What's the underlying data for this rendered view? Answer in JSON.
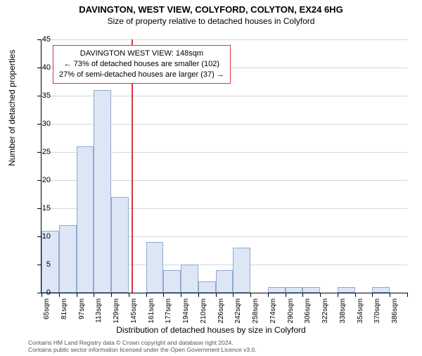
{
  "title": "DAVINGTON, WEST VIEW, COLYFORD, COLYTON, EX24 6HG",
  "subtitle": "Size of property relative to detached houses in Colyford",
  "y_axis_title": "Number of detached properties",
  "x_axis_title": "Distribution of detached houses by size in Colyford",
  "histogram": {
    "type": "histogram",
    "bin_width_sqm": 16,
    "bins": [
      {
        "label": "65sqm",
        "value": 11
      },
      {
        "label": "81sqm",
        "value": 12
      },
      {
        "label": "97sqm",
        "value": 26
      },
      {
        "label": "113sqm",
        "value": 36
      },
      {
        "label": "129sqm",
        "value": 17
      },
      {
        "label": "145sqm",
        "value": 0
      },
      {
        "label": "161sqm",
        "value": 9
      },
      {
        "label": "177sqm",
        "value": 4
      },
      {
        "label": "194sqm",
        "value": 5
      },
      {
        "label": "210sqm",
        "value": 2
      },
      {
        "label": "226sqm",
        "value": 4
      },
      {
        "label": "242sqm",
        "value": 8
      },
      {
        "label": "258sqm",
        "value": 0
      },
      {
        "label": "274sqm",
        "value": 1
      },
      {
        "label": "290sqm",
        "value": 1
      },
      {
        "label": "306sqm",
        "value": 1
      },
      {
        "label": "322sqm",
        "value": 0
      },
      {
        "label": "338sqm",
        "value": 1
      },
      {
        "label": "354sqm",
        "value": 0
      },
      {
        "label": "370sqm",
        "value": 1
      },
      {
        "label": "386sqm",
        "value": 0
      }
    ],
    "bar_fill": "#dce6f5",
    "bar_stroke": "#8faad1",
    "ylim": [
      0,
      45
    ],
    "ytick_step": 5,
    "grid_color": "#cfd7df",
    "background": "#ffffff",
    "reference": {
      "position_sqm": 148,
      "color": "#d9363e"
    }
  },
  "annotation": {
    "line1": "DAVINGTON WEST VIEW: 148sqm",
    "line2": "← 73% of detached houses are smaller (102)",
    "line3": "27% of semi-detached houses are larger (37) →",
    "border_color": "#d9363e",
    "background": "#ffffff",
    "font_size": 11
  },
  "footnote": {
    "line1": "Contains HM Land Registry data © Crown copyright and database right 2024.",
    "line2": "Contains public sector information licensed under the Open Government Licence v3.0."
  }
}
